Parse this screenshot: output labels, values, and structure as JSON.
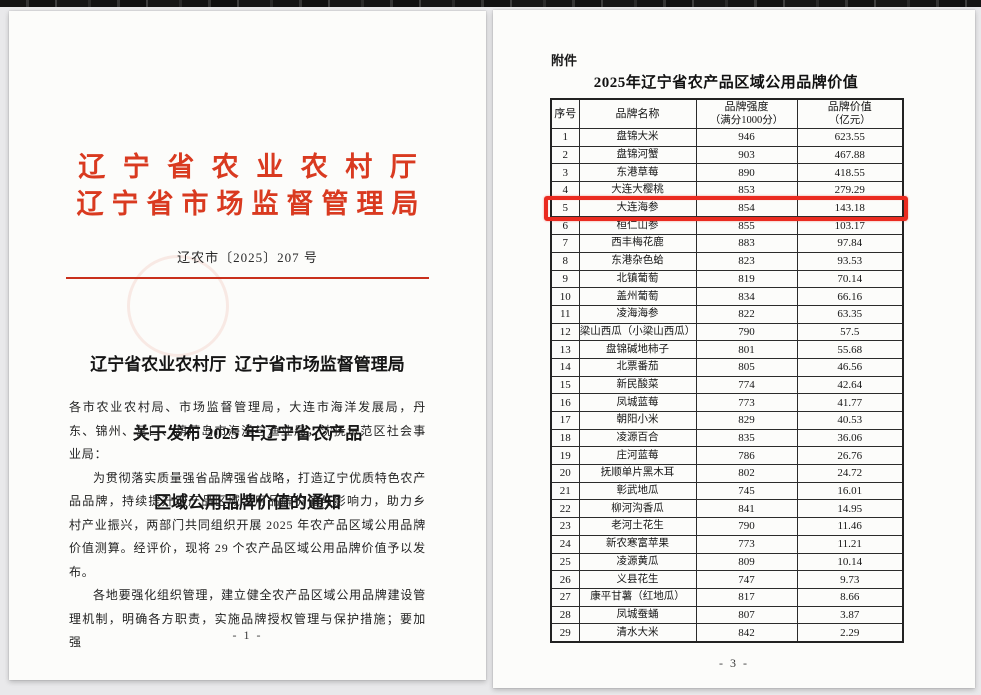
{
  "colors": {
    "accent_red": "#d93a20",
    "highlight_box_red": "#ea2b20",
    "page_background": "#e9e9eb",
    "paper": "#fcfcfa"
  },
  "left_page": {
    "agency_line1": "辽宁省农业农村厅",
    "agency_line2": "辽宁省市场监督管理局",
    "doc_number": "辽农市〔2025〕207 号",
    "title_lines": [
      "辽宁省农业农村厅  辽宁省市场监督管理局",
      "关于发布 2025 年辽宁省农产品",
      "区域公用品牌价值的通知"
    ],
    "para_addressee": "各市农业农村局、市场监督管理局，大连市海洋发展局，丹东、锦州、营口、葫芦岛市海洋与渔业局，沈抚示范区社会事业局：",
    "para_body1": "为贯彻落实质量强省品牌强省战略，打造辽宁优质特色农产品品牌，持续提升农产品区域公用品牌价值与影响力，助力乡村产业振兴，两部门共同组织开展 2025 年农产品区域公用品牌价值测算。经评价，现将 29 个农产品区域公用品牌价值予以发布。",
    "para_body2": "各地要强化组织管理，建立健全农产品区域公用品牌建设管理机制，明确各方职责，实施品牌授权管理与保护措施；要加强",
    "page_number": "- 1 -"
  },
  "right_page": {
    "attachment_label": "附件",
    "table_title": "2025年辽宁省农产品区域公用品牌价值",
    "page_number": "- 3 -",
    "table": {
      "columns": [
        {
          "label": "序号",
          "sub": ""
        },
        {
          "label": "品牌名称",
          "sub": ""
        },
        {
          "label": "品牌强度",
          "sub": "（满分1000分）"
        },
        {
          "label": "品牌价值",
          "sub": "（亿元）"
        }
      ],
      "highlighted_row_no": "5",
      "rows": [
        {
          "no": "1",
          "name": "盘锦大米",
          "strength": "946",
          "value": "623.55"
        },
        {
          "no": "2",
          "name": "盘锦河蟹",
          "strength": "903",
          "value": "467.88"
        },
        {
          "no": "3",
          "name": "东港草莓",
          "strength": "890",
          "value": "418.55"
        },
        {
          "no": "4",
          "name": "大连大樱桃",
          "strength": "853",
          "value": "279.29"
        },
        {
          "no": "5",
          "name": "大连海参",
          "strength": "854",
          "value": "143.18"
        },
        {
          "no": "6",
          "name": "桓仁山参",
          "strength": "855",
          "value": "103.17"
        },
        {
          "no": "7",
          "name": "西丰梅花鹿",
          "strength": "883",
          "value": "97.84"
        },
        {
          "no": "8",
          "name": "东港杂色蛤",
          "strength": "823",
          "value": "93.53"
        },
        {
          "no": "9",
          "name": "北镇葡萄",
          "strength": "819",
          "value": "70.14"
        },
        {
          "no": "10",
          "name": "盖州葡萄",
          "strength": "834",
          "value": "66.16"
        },
        {
          "no": "11",
          "name": "凌海海参",
          "strength": "822",
          "value": "63.35"
        },
        {
          "no": "12",
          "name": "梁山西瓜（小梁山西瓜）",
          "strength": "790",
          "value": "57.5"
        },
        {
          "no": "13",
          "name": "盘锦碱地柿子",
          "strength": "801",
          "value": "55.68"
        },
        {
          "no": "14",
          "name": "北票番茄",
          "strength": "805",
          "value": "46.56"
        },
        {
          "no": "15",
          "name": "新民酸菜",
          "strength": "774",
          "value": "42.64"
        },
        {
          "no": "16",
          "name": "凤城蓝莓",
          "strength": "773",
          "value": "41.77"
        },
        {
          "no": "17",
          "name": "朝阳小米",
          "strength": "829",
          "value": "40.53"
        },
        {
          "no": "18",
          "name": "凌源百合",
          "strength": "835",
          "value": "36.06"
        },
        {
          "no": "19",
          "name": "庄河蓝莓",
          "strength": "786",
          "value": "26.76"
        },
        {
          "no": "20",
          "name": "抚顺单片黑木耳",
          "strength": "802",
          "value": "24.72"
        },
        {
          "no": "21",
          "name": "彰武地瓜",
          "strength": "745",
          "value": "16.01"
        },
        {
          "no": "22",
          "name": "柳河沟香瓜",
          "strength": "841",
          "value": "14.95"
        },
        {
          "no": "23",
          "name": "老河土花生",
          "strength": "790",
          "value": "11.46"
        },
        {
          "no": "24",
          "name": "新农寒富苹果",
          "strength": "773",
          "value": "11.21"
        },
        {
          "no": "25",
          "name": "凌源黄瓜",
          "strength": "809",
          "value": "10.14"
        },
        {
          "no": "26",
          "name": "义县花生",
          "strength": "747",
          "value": "9.73"
        },
        {
          "no": "27",
          "name": "康平甘薯（红地瓜）",
          "strength": "817",
          "value": "8.66"
        },
        {
          "no": "28",
          "name": "凤城蚕蛹",
          "strength": "807",
          "value": "3.87"
        },
        {
          "no": "29",
          "name": "清水大米",
          "strength": "842",
          "value": "2.29"
        }
      ]
    }
  }
}
